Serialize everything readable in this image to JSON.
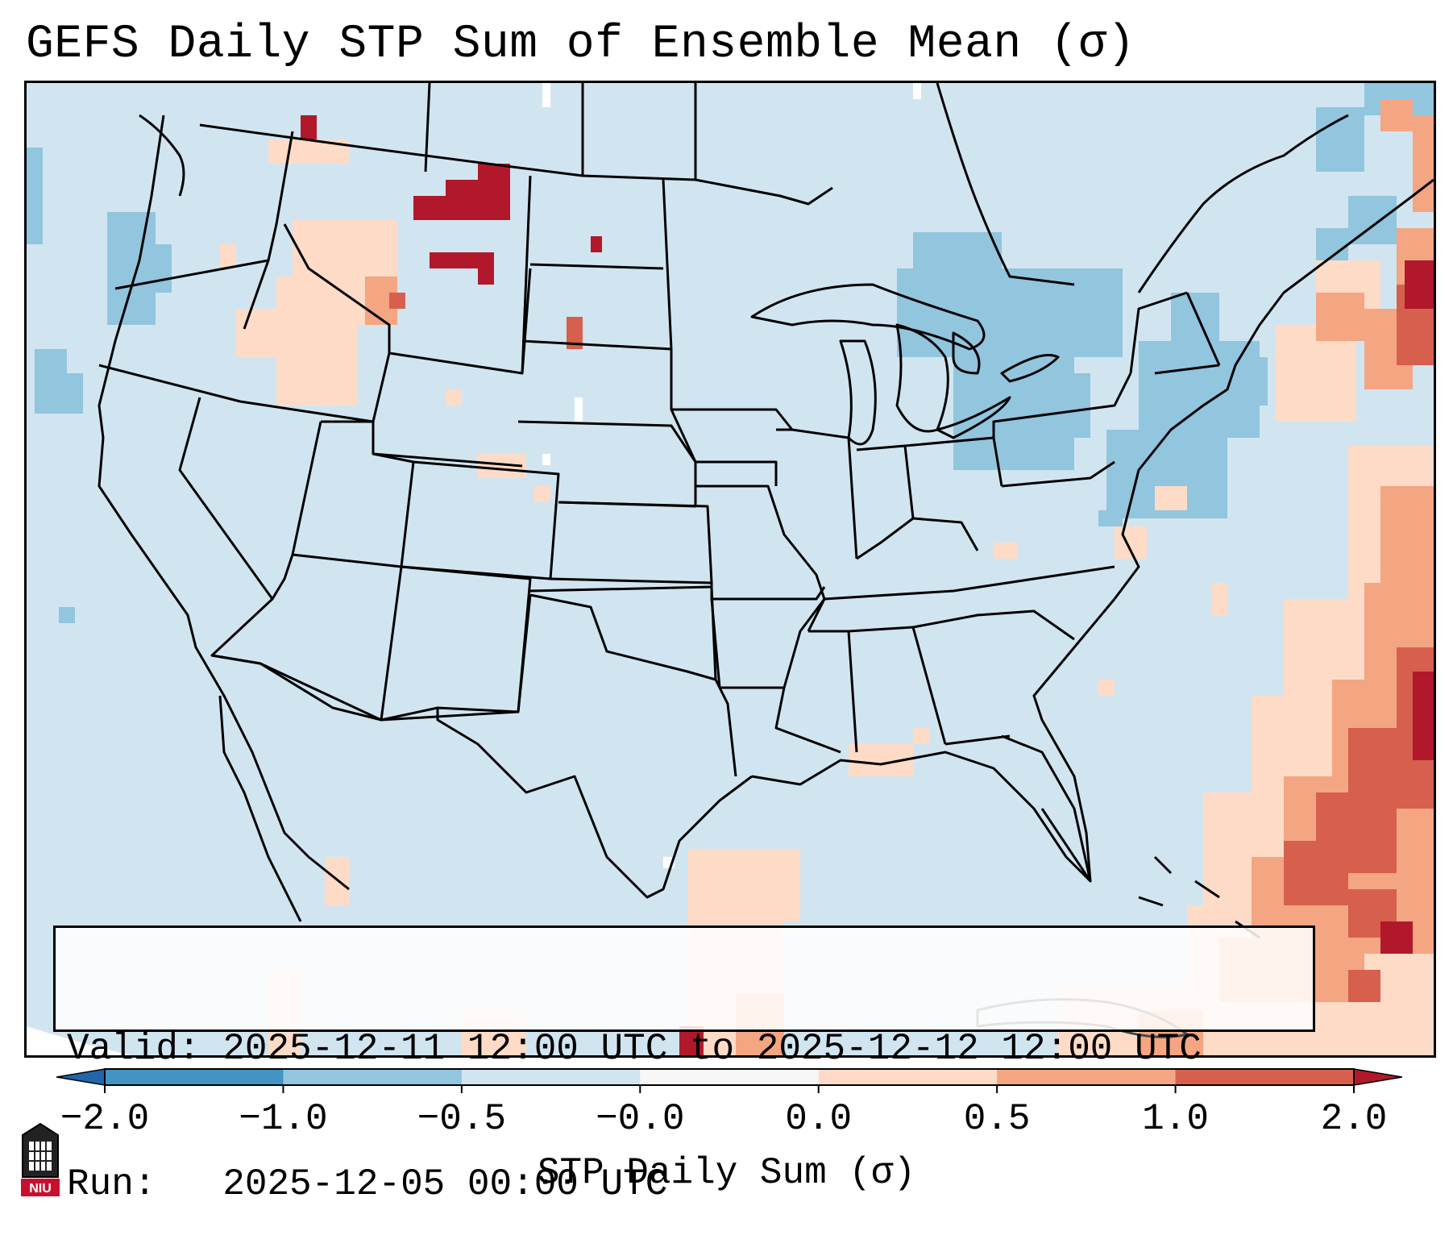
{
  "title": "GEFS Daily STP Sum of Ensemble Mean (σ)",
  "info": {
    "valid": "Valid: 2025-12-11 12:00 UTC to 2025-12-12 12:00 UTC",
    "run": "Run:   2025-12-05 00:00 UTC"
  },
  "colorbar": {
    "label": "STP Daily Sum (σ)",
    "ticks": [
      "−2.0",
      "−1.0",
      "−0.5",
      "−0.0",
      "0.0",
      "0.5",
      "1.0",
      "2.0"
    ],
    "bins": [
      {
        "range": "< -2.0",
        "color": "#2166ac"
      },
      {
        "range": "-2.0 to -1.0",
        "color": "#4393c3"
      },
      {
        "range": "-1.0 to -0.5",
        "color": "#92c5de"
      },
      {
        "range": "-0.5 to -0.0",
        "color": "#d1e5f0"
      },
      {
        "range": "-0.0 to 0.0",
        "color": "#f7f7f7"
      },
      {
        "range": "0.0 to 0.5",
        "color": "#fddbc7"
      },
      {
        "range": "0.5 to 1.0",
        "color": "#f4a582"
      },
      {
        "range": "1.0 to 2.0",
        "color": "#d6604d"
      },
      {
        "range": "> 2.0",
        "color": "#b2182b"
      }
    ]
  },
  "map": {
    "background_color": "#d1e5f0",
    "features": [
      "US state boundaries",
      "Canada-US border",
      "Mexico-US border",
      "Great Lakes",
      "Gulf of Mexico",
      "Atlantic Ocean",
      "Pacific Ocean",
      "Cuba",
      "Bahamas"
    ]
  },
  "logo": {
    "text": "NIU"
  }
}
